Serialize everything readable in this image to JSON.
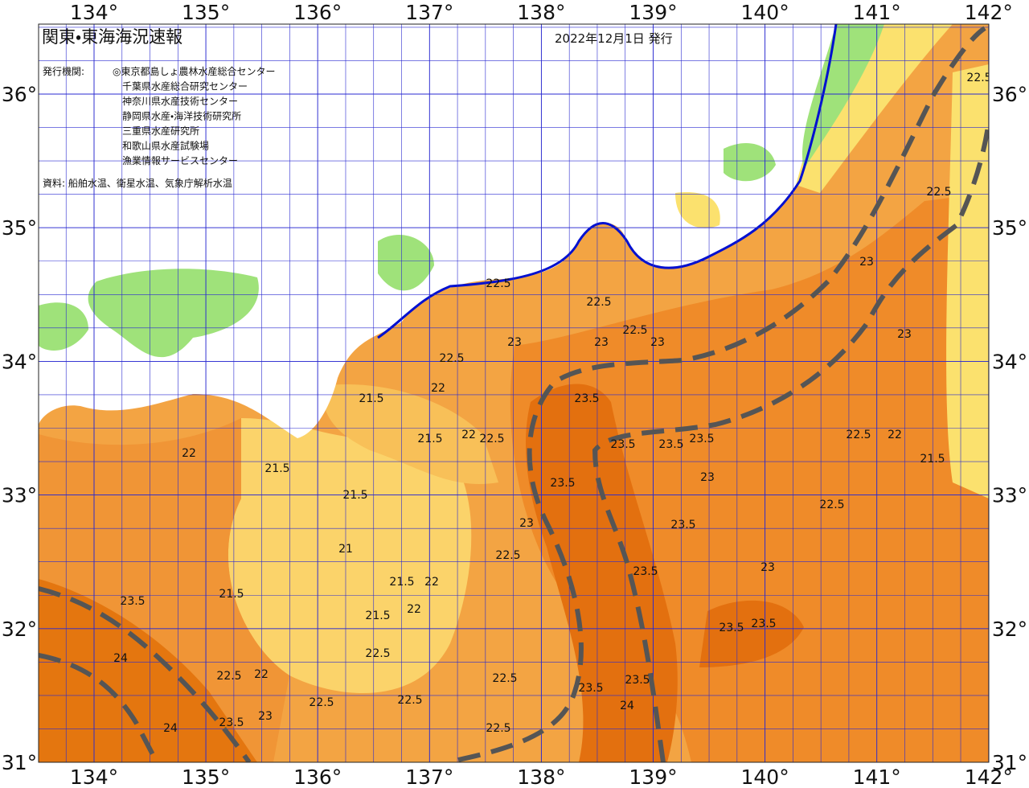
{
  "header": {
    "title": "関東・東海海況速報",
    "date": "2022年12月1日 発行",
    "publisher_label": "発行機関:",
    "publishers": [
      "◎東京都島しょ農林水産総合センター",
      "千葉県水産総合研究センター",
      "神奈川県水産技術センター",
      "静岡県水産・海洋技術研究所",
      "三重県水産研究所",
      "和歌山県水産試験場",
      "漁業情報サービスセンター"
    ],
    "source": "資料: 船舶水温、衛星水温、気象庁解析水温"
  },
  "map": {
    "lon_ticks": [
      {
        "value": 134,
        "label": "134°"
      },
      {
        "value": 135,
        "label": "135°"
      },
      {
        "value": 136,
        "label": "136°"
      },
      {
        "value": 137,
        "label": "137°"
      },
      {
        "value": 138,
        "label": "138°"
      },
      {
        "value": 139,
        "label": "139°"
      },
      {
        "value": 140,
        "label": "140°"
      },
      {
        "value": 141,
        "label": "141°"
      },
      {
        "value": 142,
        "label": "142°"
      }
    ],
    "lat_ticks": [
      {
        "value": 31,
        "label": "31°"
      },
      {
        "value": 32,
        "label": "32°"
      },
      {
        "value": 33,
        "label": "33°"
      },
      {
        "value": 34,
        "label": "34°"
      },
      {
        "value": 35,
        "label": "35°"
      },
      {
        "value": 36,
        "label": "36°"
      }
    ],
    "contour_labels": [
      "22.5",
      "22.5",
      "23",
      "23",
      "22.5",
      "23",
      "21.5",
      "22",
      "22.5",
      "21.5",
      "22",
      "22.5",
      "23.5",
      "23.5",
      "23.5",
      "23.5",
      "21.5",
      "21.5",
      "22",
      "21",
      "23",
      "23.5",
      "22.5",
      "23.5",
      "23.5",
      "23",
      "23",
      "22.5",
      "22.5",
      "22",
      "21.5",
      "22.5",
      "22.5",
      "23",
      "23",
      "21.5",
      "21.5",
      "21.5",
      "22",
      "22",
      "22.5",
      "22.5",
      "22.5",
      "22.5",
      "22.5",
      "23.5",
      "23.5",
      "24",
      "23.5",
      "24",
      "24",
      "23.5",
      "23.5",
      "22.5",
      "22",
      "23",
      "23.5"
    ]
  }
}
